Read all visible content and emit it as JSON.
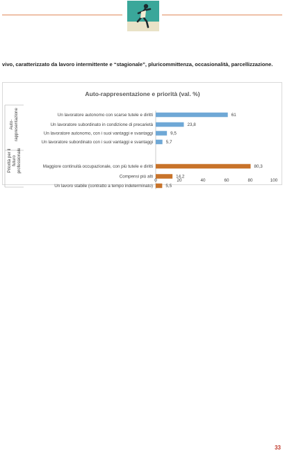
{
  "paragraph": {
    "text": "vivo, caratterizzato da lavoro intermittente e “stagionale”, pluricommittenza, occasionalità, parcellizzazione."
  },
  "chart_data": {
    "type": "bar",
    "orientation": "horizontal",
    "title": "Auto-rappresentazione e priorità (val. %)",
    "xlim": [
      0,
      100
    ],
    "xticks": [
      0,
      20,
      40,
      60,
      80,
      100
    ],
    "groups": [
      {
        "label": "Auto-rappresentazione",
        "color": "#6fa8d6",
        "categories": [
          "Un lavoratore autonomo con scarse tutele e diritti",
          "Un lavoratore subordinato in condizione di precarietà",
          "Un lavoratore autonomo, con i suoi vantaggi e svantaggi",
          "Un lavoratore subordinato con i suoi vantaggi e svantaggi"
        ],
        "values": [
          61,
          23.8,
          9.5,
          5.7
        ],
        "value_labels": [
          "61",
          "23,8",
          "9,5",
          "5,7"
        ]
      },
      {
        "label": "Priorità per il futuro professionale",
        "color": "#c8732a",
        "categories": [
          "Maggiore continuità occupazionale, con più tutele e diritti",
          "Compensi più alti",
          "Un lavoro stabile (contratto a tempo indeterminato)"
        ],
        "values": [
          80.3,
          14.2,
          5.5
        ],
        "value_labels": [
          "80,3",
          "14,2",
          "5,5"
        ]
      }
    ],
    "grid": false,
    "legend": "none"
  },
  "footer": {
    "page_number": "33"
  }
}
